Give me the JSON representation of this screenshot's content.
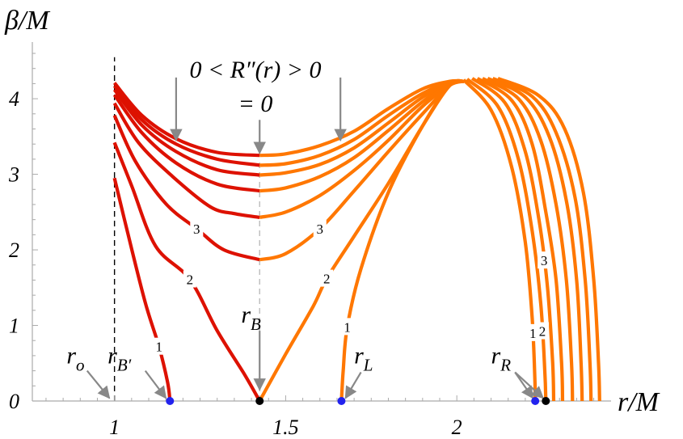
{
  "chart_data": {
    "type": "line",
    "xlabel": "r/M",
    "ylabel": "β/M",
    "xlim": [
      0.76,
      2.46
    ],
    "ylim": [
      0,
      4.75
    ],
    "x_ticks": [
      {
        "value": 1,
        "label": "1"
      },
      {
        "value": 1.5,
        "label": "1.5"
      },
      {
        "value": 2,
        "label": "2"
      }
    ],
    "y_ticks": [
      {
        "value": 0,
        "label": "0"
      },
      {
        "value": 1,
        "label": "1"
      },
      {
        "value": 2,
        "label": "2"
      },
      {
        "value": 3,
        "label": "3"
      },
      {
        "value": 4,
        "label": "4"
      }
    ],
    "vertical_lines": [
      {
        "x": 1.0,
        "style": "dashed",
        "color": "#000000"
      },
      {
        "x": 1.424,
        "style": "dashed",
        "color": "#bbbbbb",
        "y_to": 3.2
      }
    ],
    "colors": {
      "red": "#dd1100",
      "orange": "#ff7700"
    },
    "series": [
      {
        "color": "#dd1100",
        "label": "1",
        "label_at": 1.13,
        "points": [
          [
            1.0,
            2.95
          ],
          [
            1.04,
            2.2
          ],
          [
            1.09,
            1.3
          ],
          [
            1.13,
            0.72
          ],
          [
            1.155,
            0.25
          ],
          [
            1.162,
            0.0
          ]
        ]
      },
      {
        "color": "#dd1100",
        "label": "2",
        "label_at": 1.22,
        "points": [
          [
            1.0,
            3.42
          ],
          [
            1.05,
            2.85
          ],
          [
            1.12,
            2.05
          ],
          [
            1.22,
            1.61
          ],
          [
            1.3,
            0.93
          ],
          [
            1.38,
            0.35
          ],
          [
            1.424,
            0.0
          ]
        ]
      },
      {
        "color": "#dd1100",
        "label": "3",
        "label_at": 1.24,
        "points": [
          [
            1.0,
            3.78
          ],
          [
            1.06,
            3.18
          ],
          [
            1.15,
            2.61
          ],
          [
            1.24,
            2.28
          ],
          [
            1.32,
            2.0
          ],
          [
            1.424,
            1.87
          ]
        ]
      },
      {
        "color": "#dd1100",
        "label": "",
        "points": [
          [
            1.0,
            3.94
          ],
          [
            1.07,
            3.42
          ],
          [
            1.17,
            2.97
          ],
          [
            1.28,
            2.57
          ],
          [
            1.35,
            2.48
          ],
          [
            1.424,
            2.43
          ]
        ]
      },
      {
        "color": "#dd1100",
        "label": "",
        "points": [
          [
            1.0,
            4.05
          ],
          [
            1.08,
            3.55
          ],
          [
            1.18,
            3.15
          ],
          [
            1.3,
            2.87
          ],
          [
            1.424,
            2.78
          ]
        ]
      },
      {
        "color": "#dd1100",
        "label": "",
        "points": [
          [
            1.0,
            4.12
          ],
          [
            1.08,
            3.65
          ],
          [
            1.18,
            3.3
          ],
          [
            1.3,
            3.06
          ],
          [
            1.424,
            2.99
          ]
        ]
      },
      {
        "color": "#dd1100",
        "label": "",
        "points": [
          [
            1.0,
            4.17
          ],
          [
            1.08,
            3.72
          ],
          [
            1.18,
            3.4
          ],
          [
            1.3,
            3.2
          ],
          [
            1.424,
            3.12
          ]
        ]
      },
      {
        "color": "#dd1100",
        "label": "",
        "points": [
          [
            1.0,
            4.21
          ],
          [
            1.08,
            3.78
          ],
          [
            1.18,
            3.47
          ],
          [
            1.3,
            3.29
          ],
          [
            1.424,
            3.25
          ]
        ]
      },
      {
        "color": "#ff7700",
        "label": "1",
        "label_at": 1.68,
        "points": [
          [
            1.663,
            0.0
          ],
          [
            1.668,
            0.4
          ],
          [
            1.68,
            0.98
          ],
          [
            1.72,
            1.75
          ],
          [
            1.8,
            2.76
          ],
          [
            1.9,
            3.64
          ],
          [
            1.98,
            4.18
          ],
          [
            2.02,
            4.23
          ]
        ]
      },
      {
        "color": "#ff7700",
        "label": "2",
        "label_at": 1.62,
        "points": [
          [
            1.424,
            0.0
          ],
          [
            1.5,
            0.62
          ],
          [
            1.58,
            1.25
          ],
          [
            1.62,
            1.62
          ],
          [
            1.7,
            2.18
          ],
          [
            1.8,
            2.88
          ],
          [
            1.9,
            3.64
          ],
          [
            1.98,
            4.18
          ],
          [
            2.02,
            4.23
          ]
        ]
      },
      {
        "color": "#ff7700",
        "label": "3",
        "label_at": 1.6,
        "points": [
          [
            1.424,
            1.87
          ],
          [
            1.5,
            1.95
          ],
          [
            1.6,
            2.28
          ],
          [
            1.7,
            2.78
          ],
          [
            1.8,
            3.3
          ],
          [
            1.9,
            3.8
          ],
          [
            1.98,
            4.18
          ],
          [
            2.02,
            4.23
          ]
        ]
      },
      {
        "color": "#ff7700",
        "label": "",
        "points": [
          [
            1.424,
            2.43
          ],
          [
            1.5,
            2.5
          ],
          [
            1.6,
            2.72
          ],
          [
            1.7,
            3.05
          ],
          [
            1.8,
            3.45
          ],
          [
            1.9,
            3.9
          ],
          [
            1.98,
            4.18
          ],
          [
            2.02,
            4.23
          ]
        ]
      },
      {
        "color": "#ff7700",
        "label": "",
        "points": [
          [
            1.424,
            2.78
          ],
          [
            1.5,
            2.82
          ],
          [
            1.6,
            2.97
          ],
          [
            1.7,
            3.22
          ],
          [
            1.8,
            3.58
          ],
          [
            1.9,
            3.96
          ],
          [
            1.98,
            4.2
          ],
          [
            2.02,
            4.23
          ]
        ]
      },
      {
        "color": "#ff7700",
        "label": "",
        "points": [
          [
            1.424,
            2.99
          ],
          [
            1.5,
            3.02
          ],
          [
            1.6,
            3.13
          ],
          [
            1.7,
            3.35
          ],
          [
            1.8,
            3.68
          ],
          [
            1.9,
            4.02
          ],
          [
            1.98,
            4.21
          ],
          [
            2.02,
            4.23
          ]
        ]
      },
      {
        "color": "#ff7700",
        "label": "",
        "points": [
          [
            1.424,
            3.12
          ],
          [
            1.5,
            3.14
          ],
          [
            1.6,
            3.25
          ],
          [
            1.7,
            3.46
          ],
          [
            1.8,
            3.78
          ],
          [
            1.9,
            4.07
          ],
          [
            1.98,
            4.22
          ],
          [
            2.02,
            4.23
          ]
        ]
      },
      {
        "color": "#ff7700",
        "label": "",
        "points": [
          [
            1.424,
            3.25
          ],
          [
            1.5,
            3.27
          ],
          [
            1.6,
            3.38
          ],
          [
            1.7,
            3.57
          ],
          [
            1.8,
            3.87
          ],
          [
            1.9,
            4.13
          ],
          [
            1.98,
            4.23
          ],
          [
            2.02,
            4.23
          ]
        ]
      },
      {
        "color": "#ff7700",
        "label": "1",
        "label_at": 2.222,
        "points": [
          [
            2.02,
            4.25
          ],
          [
            2.1,
            3.85
          ],
          [
            2.16,
            3.1
          ],
          [
            2.2,
            2.1
          ],
          [
            2.22,
            1.1
          ],
          [
            2.228,
            0.3
          ],
          [
            2.229,
            0.0
          ]
        ]
      },
      {
        "color": "#ff7700",
        "label": "2",
        "label_at": 2.25,
        "points": [
          [
            2.03,
            4.26
          ],
          [
            2.12,
            3.9
          ],
          [
            2.18,
            3.2
          ],
          [
            2.22,
            2.25
          ],
          [
            2.245,
            1.3
          ],
          [
            2.257,
            0.4
          ],
          [
            2.26,
            0.0
          ]
        ]
      },
      {
        "color": "#ff7700",
        "label": "3",
        "label_at": 2.255,
        "points": [
          [
            2.045,
            4.27
          ],
          [
            2.14,
            3.95
          ],
          [
            2.2,
            3.3
          ],
          [
            2.24,
            2.4
          ],
          [
            2.265,
            1.5
          ],
          [
            2.28,
            0.5
          ],
          [
            2.283,
            0.0
          ]
        ]
      },
      {
        "color": "#ff7700",
        "label": "",
        "points": [
          [
            2.06,
            4.27
          ],
          [
            2.16,
            3.98
          ],
          [
            2.22,
            3.4
          ],
          [
            2.26,
            2.5
          ],
          [
            2.29,
            1.6
          ],
          [
            2.306,
            0.5
          ],
          [
            2.309,
            0.0
          ]
        ]
      },
      {
        "color": "#ff7700",
        "label": "",
        "points": [
          [
            2.075,
            4.27
          ],
          [
            2.18,
            4.0
          ],
          [
            2.245,
            3.45
          ],
          [
            2.29,
            2.6
          ],
          [
            2.32,
            1.6
          ],
          [
            2.335,
            0.5
          ],
          [
            2.338,
            0.0
          ]
        ]
      },
      {
        "color": "#ff7700",
        "label": "",
        "points": [
          [
            2.09,
            4.27
          ],
          [
            2.2,
            4.02
          ],
          [
            2.27,
            3.5
          ],
          [
            2.32,
            2.65
          ],
          [
            2.35,
            1.6
          ],
          [
            2.363,
            0.5
          ],
          [
            2.366,
            0.0
          ]
        ]
      },
      {
        "color": "#ff7700",
        "label": "",
        "points": [
          [
            2.105,
            4.27
          ],
          [
            2.22,
            4.03
          ],
          [
            2.29,
            3.55
          ],
          [
            2.345,
            2.7
          ],
          [
            2.375,
            1.6
          ],
          [
            2.389,
            0.5
          ],
          [
            2.392,
            0.0
          ]
        ]
      },
      {
        "color": "#ff7700",
        "label": "",
        "points": [
          [
            2.12,
            4.27
          ],
          [
            2.24,
            4.04
          ],
          [
            2.315,
            3.6
          ],
          [
            2.37,
            2.75
          ],
          [
            2.4,
            1.6
          ],
          [
            2.414,
            0.5
          ],
          [
            2.417,
            0.0
          ]
        ]
      }
    ],
    "markers": [
      {
        "x": 1.162,
        "y": 0,
        "color": "#2222ee"
      },
      {
        "x": 1.424,
        "y": 0,
        "color": "#000000"
      },
      {
        "x": 1.663,
        "y": 0,
        "color": "#2222ee"
      },
      {
        "x": 2.229,
        "y": 0,
        "color": "#2222ee"
      },
      {
        "x": 2.26,
        "y": 0,
        "color": "#000000"
      }
    ],
    "annotations": [
      {
        "id": "ro",
        "text": "r",
        "sub": "o",
        "tx": 0.86,
        "ty": 0.5,
        "arrow_from": [
          0.92,
          0.4
        ],
        "arrow_to": [
          0.985,
          0.04
        ]
      },
      {
        "id": "rbp",
        "text": "r",
        "sub": "B′",
        "tx": 0.98,
        "ty": 0.5,
        "arrow_from": [
          1.09,
          0.4
        ],
        "arrow_to": [
          1.15,
          0.04
        ]
      },
      {
        "id": "rb",
        "text": "r",
        "sub": "B",
        "tx": 1.37,
        "ty": 1.04,
        "arrow_from": [
          1.424,
          0.93
        ],
        "arrow_to": [
          1.424,
          0.15
        ]
      },
      {
        "id": "rl",
        "text": "r",
        "sub": "L",
        "tx": 1.7,
        "ty": 0.5,
        "arrow_from": [
          1.72,
          0.38
        ],
        "arrow_to": [
          1.675,
          0.04
        ]
      },
      {
        "id": "rr",
        "text": "r",
        "sub": "R",
        "tx": 2.1,
        "ty": 0.5,
        "arrow_from": [
          2.17,
          0.38
        ],
        "arrow_to": [
          2.222,
          0.04
        ],
        "arrow2_to": [
          2.252,
          0.04
        ]
      }
    ],
    "condition_labels": {
      "top": "0 < R″(r) > 0",
      "bottom": "= 0",
      "arrows": [
        {
          "x": 1.18,
          "y_from": 4.28,
          "y_to": 3.45
        },
        {
          "x": 1.424,
          "y_from": 3.72,
          "y_to": 3.28
        },
        {
          "x": 1.66,
          "y_from": 4.28,
          "y_to": 3.45
        }
      ]
    }
  }
}
